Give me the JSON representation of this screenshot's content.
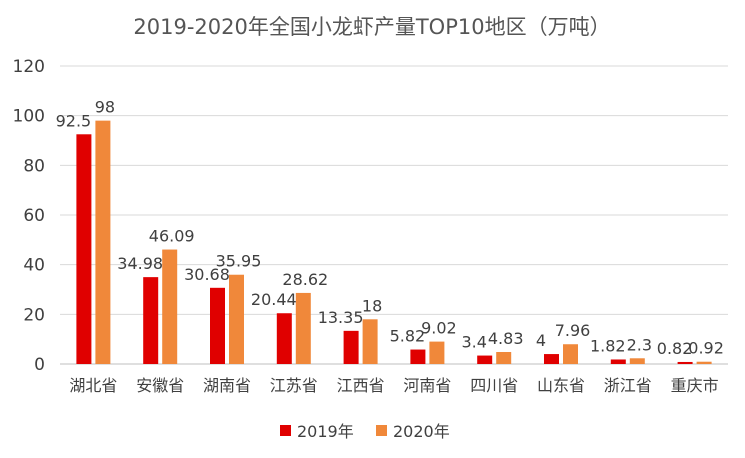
{
  "chart_data": {
    "type": "bar",
    "title": "2019-2020年全国小龙虾产量TOP10地区（万吨）",
    "categories": [
      "湖北省",
      "安徽省",
      "湖南省",
      "江苏省",
      "江西省",
      "河南省",
      "四川省",
      "山东省",
      "浙江省",
      "重庆市"
    ],
    "series": [
      {
        "name": "2019年",
        "color": "#e00000",
        "values": [
          92.5,
          34.98,
          30.68,
          20.44,
          13.35,
          5.82,
          3.4,
          4,
          1.82,
          0.82
        ],
        "labels": [
          "92.5",
          "34.98",
          "30.68",
          "20.44",
          "13.35",
          "5.82",
          "3.4",
          "4",
          "1.82",
          "0.82"
        ]
      },
      {
        "name": "2020年",
        "color": "#f0883a",
        "values": [
          98,
          46.09,
          35.95,
          28.62,
          18,
          9.02,
          4.83,
          7.96,
          2.3,
          0.92
        ],
        "labels": [
          "98",
          "46.09",
          "35.95",
          "28.62",
          "18",
          "9.02",
          "4.83",
          "7.96",
          "2.3",
          "0.92"
        ]
      }
    ],
    "yticks": [
      "0",
      "20",
      "40",
      "60",
      "80",
      "100",
      "120"
    ],
    "ylim": [
      0,
      120
    ],
    "grid": true,
    "legend": "bottom"
  }
}
